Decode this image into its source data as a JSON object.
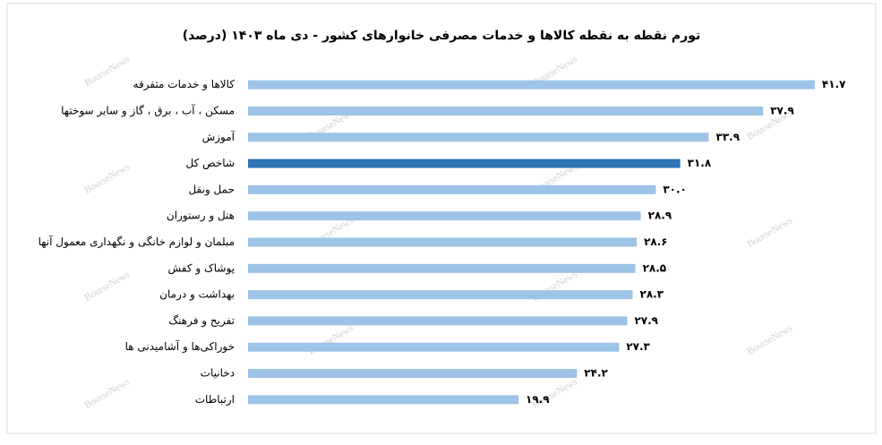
{
  "chart_data": {
    "type": "bar",
    "orientation": "horizontal",
    "title": "تورم نقطه به نقطه کالاها و خدمات مصرفی خانوارهای کشور - دی ماه ۱۴۰۳ (درصد)",
    "watermark": "BourseNews",
    "categories": [
      "کالاها و خدمات متفرقه",
      "مسکن ، آب ، برق ، گاز و سایر سوختها",
      "آموزش",
      "شاخص کل",
      "حمل ونقل",
      "هتل و رستوران",
      "مبلمان و لوازم خانگی و نگهداری معمول آنها",
      "پوشاک و کفش",
      "بهداشت و درمان",
      "تفریح و فرهنگ",
      "خوراکی‌ها و آشامیدنی ها",
      "دخانیات",
      "ارتباطات"
    ],
    "values": [
      41.7,
      37.9,
      33.9,
      31.8,
      30.0,
      28.9,
      28.6,
      28.5,
      28.3,
      27.9,
      27.3,
      24.2,
      19.9
    ],
    "value_labels": [
      "۴۱.۷",
      "۳۷.۹",
      "۳۳.۹",
      "۳۱.۸",
      "۳۰.۰",
      "۲۸.۹",
      "۲۸.۶",
      "۲۸.۵",
      "۲۸.۳",
      "۲۷.۹",
      "۲۷.۳",
      "۲۴.۲",
      "۱۹.۹"
    ],
    "colors": [
      "#9dc3e6",
      "#9dc3e6",
      "#9dc3e6",
      "#2e75b6",
      "#9dc3e6",
      "#9dc3e6",
      "#9dc3e6",
      "#9dc3e6",
      "#9dc3e6",
      "#9dc3e6",
      "#9dc3e6",
      "#9dc3e6",
      "#9dc3e6"
    ],
    "xlim": [
      0,
      45
    ]
  }
}
